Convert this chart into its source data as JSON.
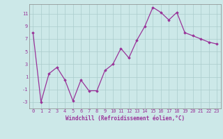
{
  "x": [
    0,
    1,
    2,
    3,
    4,
    5,
    6,
    7,
    8,
    9,
    10,
    11,
    12,
    13,
    14,
    15,
    16,
    17,
    18,
    19,
    20,
    21,
    22,
    23
  ],
  "y": [
    8.0,
    -3.0,
    1.5,
    2.5,
    0.5,
    -2.8,
    0.5,
    -1.2,
    -1.2,
    2.0,
    3.0,
    5.5,
    4.0,
    6.8,
    9.0,
    12.0,
    11.2,
    10.0,
    11.2,
    8.0,
    7.5,
    7.0,
    6.5,
    6.2
  ],
  "xlabel": "Windchill (Refroidissement éolien,°C)",
  "xlim": [
    -0.5,
    23.5
  ],
  "ylim": [
    -4.0,
    12.5
  ],
  "yticks": [
    -3,
    -1,
    1,
    3,
    5,
    7,
    9,
    11
  ],
  "xticks": [
    0,
    1,
    2,
    3,
    4,
    5,
    6,
    7,
    8,
    9,
    10,
    11,
    12,
    13,
    14,
    15,
    16,
    17,
    18,
    19,
    20,
    21,
    22,
    23
  ],
  "line_color": "#993399",
  "marker": "D",
  "marker_size": 1.8,
  "bg_color": "#cce8e8",
  "grid_color": "#aacccc",
  "font_color": "#993399",
  "tick_fontsize": 5.0,
  "xlabel_fontsize": 5.5,
  "linewidth": 0.9
}
